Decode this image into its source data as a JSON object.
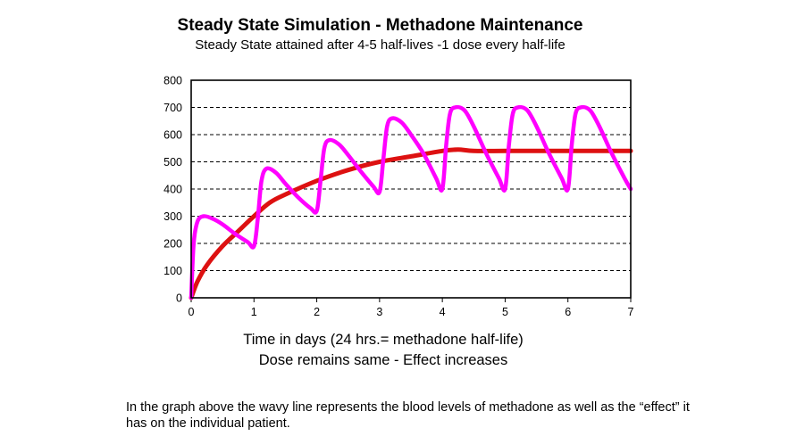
{
  "title": "Steady State Simulation - Methadone Maintenance",
  "subtitle": "Steady State attained after 4-5 half-lives -1 dose every half-life",
  "xlabel": "Time in days (24 hrs.= methadone half-life)",
  "note": "Dose remains same - Effect increases",
  "caption": "In the graph above the wavy line represents the blood levels of methadone as well as the “effect” it has on the individual patient.",
  "chart_data": {
    "type": "line",
    "title": "Steady State Simulation - Methadone Maintenance",
    "subtitle": "Steady State attained after 4-5 half-lives -1 dose every half-life",
    "xlabel": "Time in days (24 hrs.= methadone half-life)",
    "ylabel": "",
    "xlim": [
      0,
      7
    ],
    "ylim": [
      0,
      800
    ],
    "xticks": [
      0,
      1,
      2,
      3,
      4,
      5,
      6,
      7
    ],
    "yticks": [
      0,
      100,
      200,
      300,
      400,
      500,
      600,
      700,
      800
    ],
    "grid": "horizontal dashed",
    "colors": {
      "wavy": "#ff00ff",
      "smooth": "#dd1111"
    },
    "series": [
      {
        "x": [
          0,
          0.04,
          0.1,
          0.2,
          0.35,
          0.5,
          0.7,
          0.9,
          1.0,
          1.06,
          1.12,
          1.2,
          1.35,
          1.5,
          1.7,
          1.9,
          2.0,
          2.06,
          2.12,
          2.2,
          2.35,
          2.5,
          2.7,
          2.9,
          3.0,
          3.06,
          3.12,
          3.2,
          3.35,
          3.5,
          3.7,
          3.9,
          4.0,
          4.06,
          4.12,
          4.2,
          4.35,
          4.5,
          4.7,
          4.9,
          5.0,
          5.06,
          5.12,
          5.2,
          5.35,
          5.5,
          5.7,
          5.9,
          6.0,
          6.06,
          6.12,
          6.2,
          6.35,
          6.5,
          6.7,
          6.9,
          7.0
        ],
        "y": [
          0,
          200,
          280,
          300,
          290,
          270,
          235,
          205,
          190,
          290,
          430,
          475,
          460,
          420,
          370,
          330,
          320,
          430,
          550,
          580,
          565,
          525,
          465,
          410,
          390,
          510,
          630,
          660,
          645,
          600,
          530,
          440,
          400,
          560,
          675,
          700,
          690,
          630,
          530,
          440,
          400,
          560,
          675,
          700,
          690,
          630,
          530,
          440,
          400,
          560,
          675,
          700,
          690,
          630,
          530,
          440,
          400
        ]
      },
      {
        "x": [
          0,
          0.1,
          0.25,
          0.5,
          0.75,
          1.0,
          1.25,
          1.5,
          2.0,
          2.5,
          3.0,
          3.5,
          4.0,
          4.25,
          4.5,
          5.0,
          5.5,
          6.0,
          6.5,
          7.0
        ],
        "y": [
          0,
          60,
          120,
          190,
          245,
          300,
          350,
          380,
          430,
          470,
          500,
          520,
          540,
          545,
          540,
          540,
          540,
          540,
          540,
          540
        ]
      }
    ]
  }
}
